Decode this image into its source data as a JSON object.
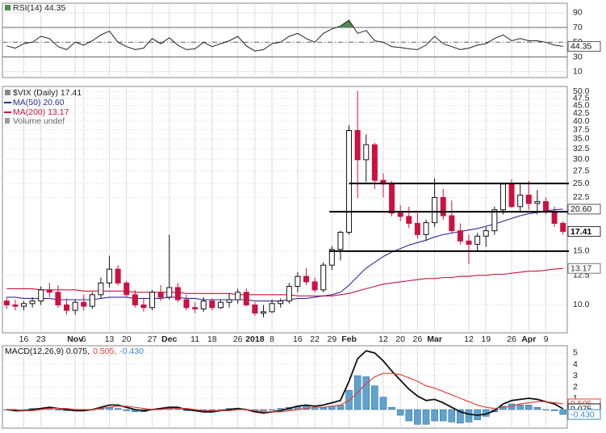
{
  "chart_data": [
    {
      "type": "line",
      "title": "RSI(14) 44.35",
      "series": [
        {
          "color": "#222222",
          "last_label": "44.35",
          "values": [
            45,
            42,
            48,
            50,
            58,
            55,
            44,
            40,
            50,
            46,
            52,
            60,
            65,
            50,
            44,
            40,
            42,
            55,
            48,
            56,
            46,
            40,
            41,
            50,
            44,
            48,
            52,
            58,
            45,
            38,
            40,
            48,
            50,
            58,
            62,
            55,
            50,
            62,
            68,
            72,
            80,
            62,
            66,
            52,
            50,
            44,
            43,
            41,
            40,
            46,
            58,
            48,
            44,
            40,
            42,
            46,
            48,
            55,
            60,
            52,
            55,
            52,
            52,
            50,
            46,
            44.35
          ]
        }
      ],
      "ylim": [
        2,
        103
      ],
      "yticks": [
        90,
        70,
        50,
        30,
        10
      ],
      "reference_lines": [
        {
          "value": 70,
          "style": "solid"
        },
        {
          "value": 50,
          "style": "dashdot"
        },
        {
          "value": 30,
          "style": "solid"
        }
      ],
      "overbought_fill": "#4f8a4f"
    },
    {
      "type": "candlestick",
      "title": "$VIX (Daily) 17.41",
      "note": "Volume undef",
      "categories": [
        null,
        null,
        "16",
        null,
        "23",
        null,
        null,
        null,
        "Nov",
        "6",
        null,
        null,
        "13",
        null,
        "20",
        null,
        null,
        "27",
        null,
        "Dec",
        null,
        null,
        "11",
        null,
        "18",
        null,
        null,
        "26",
        null,
        "2018",
        null,
        "8",
        null,
        null,
        "16",
        null,
        "22",
        null,
        "29",
        null,
        "Feb",
        null,
        null,
        null,
        "12",
        null,
        "20",
        null,
        "26",
        null,
        "Mar",
        null,
        null,
        null,
        "12",
        null,
        "19",
        null,
        null,
        "26",
        null,
        "Apr",
        null,
        "9",
        null,
        null
      ],
      "open": [
        10.3,
        10.0,
        9.9,
        10.1,
        10.3,
        11.2,
        11.0,
        10.0,
        9.6,
        10.2,
        9.9,
        10.8,
        11.8,
        13.1,
        11.8,
        10.8,
        10.0,
        9.8,
        11.0,
        10.6,
        11.4,
        10.4,
        9.8,
        9.7,
        10.3,
        9.8,
        10.2,
        10.4,
        11.0,
        10.0,
        9.4,
        9.5,
        10.1,
        10.3,
        11.5,
        12.4,
        11.9,
        11.2,
        13.5,
        15.2,
        17.3,
        37.3,
        29.9,
        33.5,
        25.6,
        24.9,
        20.0,
        19.5,
        18.5,
        17.0,
        18.6,
        22.5,
        19.6,
        17.5,
        16.2,
        15.8,
        16.8,
        17.5,
        20.5,
        24.9,
        21.0,
        22.9,
        21.5,
        21.8,
        20.2,
        18.5
      ],
      "high": [
        10.6,
        10.4,
        10.3,
        10.6,
        11.5,
        11.8,
        11.6,
        10.5,
        10.4,
        10.8,
        11.0,
        12.3,
        14.5,
        13.5,
        12.0,
        11.2,
        10.5,
        11.2,
        11.6,
        17.0,
        11.8,
        10.8,
        10.2,
        10.6,
        10.5,
        10.4,
        10.9,
        11.3,
        11.3,
        10.2,
        10.0,
        10.4,
        10.5,
        11.8,
        12.8,
        13.2,
        12.3,
        13.8,
        15.6,
        17.5,
        38.8,
        50.3,
        36.2,
        34.0,
        27.0,
        25.5,
        21.2,
        21.0,
        20.0,
        19.0,
        26.0,
        24.0,
        22.0,
        18.5,
        17.0,
        17.2,
        18.0,
        21.0,
        25.0,
        25.8,
        24.8,
        25.5,
        23.8,
        22.5,
        21.0,
        18.8
      ],
      "low": [
        9.7,
        9.6,
        9.6,
        9.8,
        10.0,
        10.6,
        9.8,
        9.3,
        9.3,
        9.6,
        9.7,
        10.5,
        11.4,
        11.6,
        10.6,
        9.8,
        9.5,
        9.6,
        10.3,
        10.4,
        10.2,
        9.6,
        9.4,
        9.5,
        9.6,
        9.7,
        9.8,
        10.1,
        9.9,
        9.2,
        9.1,
        9.4,
        9.8,
        10.1,
        11.0,
        11.6,
        11.0,
        11.0,
        13.0,
        14.0,
        17.0,
        22.4,
        25.3,
        24.0,
        22.5,
        19.5,
        18.8,
        17.9,
        16.5,
        16.2,
        18.0,
        19.0,
        17.2,
        15.8,
        13.6,
        15.0,
        15.5,
        17.0,
        19.8,
        20.8,
        20.2,
        20.5,
        19.8,
        19.8,
        18.0,
        17.0
      ],
      "close": [
        10.0,
        9.9,
        10.1,
        10.3,
        11.2,
        11.0,
        10.0,
        9.6,
        10.2,
        9.9,
        10.8,
        11.8,
        13.1,
        11.8,
        10.8,
        10.0,
        9.8,
        11.0,
        10.6,
        11.4,
        10.4,
        9.8,
        9.7,
        10.3,
        9.8,
        10.2,
        10.4,
        11.0,
        10.0,
        9.4,
        9.5,
        10.1,
        10.3,
        11.5,
        12.4,
        11.9,
        11.2,
        13.5,
        15.2,
        17.3,
        37.3,
        29.9,
        33.5,
        25.6,
        24.9,
        20.0,
        19.5,
        18.5,
        17.0,
        18.6,
        22.5,
        19.6,
        17.5,
        16.2,
        15.8,
        16.8,
        17.5,
        20.5,
        24.9,
        21.0,
        22.9,
        21.5,
        21.8,
        20.2,
        18.5,
        17.41
      ],
      "close_label": "17.41",
      "up_color": "#111111",
      "down_color": "#cc1040",
      "series": [
        {
          "name": "MA(50) 20.60",
          "color": "#2b2b9b",
          "last_label": "20.60",
          "values": [
            10.6,
            10.6,
            10.5,
            10.5,
            10.5,
            10.5,
            10.4,
            10.4,
            10.4,
            10.4,
            10.4,
            10.5,
            10.6,
            10.6,
            10.6,
            10.5,
            10.5,
            10.5,
            10.5,
            10.6,
            10.6,
            10.5,
            10.5,
            10.4,
            10.4,
            10.4,
            10.4,
            10.4,
            10.4,
            10.3,
            10.3,
            10.3,
            10.3,
            10.4,
            10.5,
            10.5,
            10.6,
            10.7,
            10.8,
            11.0,
            11.6,
            12.4,
            13.2,
            13.8,
            14.4,
            14.9,
            15.3,
            15.7,
            16.0,
            16.3,
            16.7,
            17.0,
            17.2,
            17.4,
            17.6,
            17.8,
            18.1,
            18.4,
            18.8,
            19.2,
            19.6,
            19.9,
            20.1,
            20.3,
            20.5,
            20.6
          ]
        },
        {
          "name": "MA(200) 13.17",
          "color": "#c8143c",
          "last_label": "13.17",
          "values": [
            11.3,
            11.3,
            11.3,
            11.3,
            11.2,
            11.2,
            11.2,
            11.2,
            11.2,
            11.1,
            11.1,
            11.1,
            11.1,
            11.1,
            11.1,
            11.0,
            11.0,
            11.0,
            11.0,
            11.0,
            11.0,
            10.9,
            10.9,
            10.9,
            10.9,
            10.9,
            10.9,
            10.8,
            10.8,
            10.8,
            10.8,
            10.8,
            10.8,
            10.8,
            10.7,
            10.7,
            10.7,
            10.7,
            10.7,
            10.8,
            10.9,
            11.1,
            11.3,
            11.5,
            11.7,
            11.8,
            11.9,
            12.0,
            12.1,
            12.2,
            12.2,
            12.3,
            12.3,
            12.4,
            12.4,
            12.5,
            12.5,
            12.6,
            12.6,
            12.7,
            12.8,
            12.9,
            12.9,
            13.0,
            13.1,
            13.17
          ]
        }
      ],
      "ylim": [
        8.1,
        52
      ],
      "log_scale": true,
      "grid": true,
      "yticks": [
        {
          "value": 10,
          "label": "10.0"
        },
        {
          "value": 12.5,
          "label": "12.5"
        },
        {
          "value": 15,
          "label": "15.0"
        },
        {
          "value": 22.5,
          "label": "22.5"
        },
        {
          "value": 25,
          "label": "25.0"
        },
        {
          "value": 27.5,
          "label": "27.5"
        },
        {
          "value": 30,
          "label": "30.0"
        },
        {
          "value": 32.5,
          "label": "32.5"
        },
        {
          "value": 35,
          "label": "35.0"
        },
        {
          "value": 37.5,
          "label": "37.5"
        },
        {
          "value": 40,
          "label": "40.0"
        },
        {
          "value": 42.5,
          "label": "42.5"
        },
        {
          "value": 45,
          "label": "45.0"
        },
        {
          "value": 47.5,
          "label": "47.5"
        },
        {
          "value": 50,
          "label": "50.0"
        }
      ],
      "levels": [
        {
          "value": 25,
          "start": 40
        },
        {
          "value": 20.2,
          "start": 37.7
        },
        {
          "value": 15,
          "start": 37.7
        }
      ]
    },
    {
      "type": "macd",
      "title_parts": [
        "MACD(12,26,9) 0.075,",
        "0.505,",
        "-0.430"
      ],
      "series": [
        {
          "style": "line",
          "color": "#111111",
          "last_label": "0.075",
          "values": [
            0.0,
            -0.1,
            -0.1,
            0.0,
            0.1,
            0.2,
            0.1,
            0.0,
            -0.1,
            -0.1,
            0.0,
            0.2,
            0.4,
            0.4,
            0.2,
            0.0,
            -0.1,
            0.0,
            0.1,
            0.2,
            0.2,
            0.0,
            -0.1,
            -0.2,
            -0.2,
            -0.1,
            0.0,
            0.1,
            0.0,
            -0.2,
            -0.3,
            -0.2,
            -0.1,
            0.1,
            0.3,
            0.4,
            0.3,
            0.4,
            0.6,
            0.8,
            2.5,
            4.5,
            5.2,
            5.0,
            4.3,
            3.4,
            2.6,
            1.8,
            1.2,
            0.8,
            0.9,
            0.6,
            0.2,
            -0.2,
            -0.4,
            -0.5,
            -0.4,
            -0.1,
            0.5,
            0.8,
            0.9,
            1.0,
            0.9,
            0.7,
            0.5,
            0.075
          ]
        },
        {
          "style": "line",
          "color": "#e0403a",
          "last_label": "0.505",
          "values": [
            0.0,
            0.0,
            -0.1,
            -0.1,
            0.0,
            0.1,
            0.1,
            0.1,
            0.0,
            0.0,
            0.0,
            0.1,
            0.2,
            0.3,
            0.3,
            0.2,
            0.1,
            0.0,
            0.0,
            0.1,
            0.1,
            0.1,
            0.0,
            -0.1,
            -0.1,
            -0.1,
            -0.1,
            0.0,
            0.0,
            -0.1,
            -0.2,
            -0.2,
            -0.2,
            -0.1,
            0.0,
            0.1,
            0.2,
            0.2,
            0.3,
            0.4,
            0.8,
            1.5,
            2.3,
            2.9,
            3.2,
            3.2,
            3.1,
            2.8,
            2.5,
            2.1,
            1.9,
            1.6,
            1.3,
            1.0,
            0.7,
            0.4,
            0.2,
            0.1,
            0.2,
            0.3,
            0.5,
            0.6,
            0.7,
            0.7,
            0.6,
            0.505
          ]
        },
        {
          "style": "bars",
          "color": "#3a8cc4",
          "last_label": "-0.430",
          "values": [
            0.0,
            -0.1,
            0.0,
            0.1,
            0.1,
            0.1,
            0.0,
            -0.1,
            -0.1,
            -0.1,
            0.0,
            0.1,
            0.2,
            0.1,
            -0.1,
            -0.2,
            -0.2,
            0.0,
            0.1,
            0.1,
            0.1,
            -0.1,
            -0.1,
            -0.1,
            -0.1,
            0.0,
            0.1,
            0.1,
            0.0,
            -0.1,
            -0.1,
            0.0,
            0.1,
            0.2,
            0.3,
            0.3,
            0.1,
            0.2,
            0.3,
            0.4,
            1.7,
            3.0,
            2.9,
            2.1,
            1.1,
            0.2,
            -0.5,
            -1.0,
            -1.3,
            -1.3,
            -1.0,
            -1.0,
            -1.1,
            -1.2,
            -1.1,
            -0.9,
            -0.6,
            -0.2,
            0.3,
            0.5,
            0.4,
            0.4,
            0.2,
            0.0,
            -0.1,
            -0.43
          ]
        }
      ],
      "ylim": [
        -1.64,
        5.64
      ],
      "yticks": [
        5,
        4,
        3,
        2,
        1
      ]
    }
  ]
}
